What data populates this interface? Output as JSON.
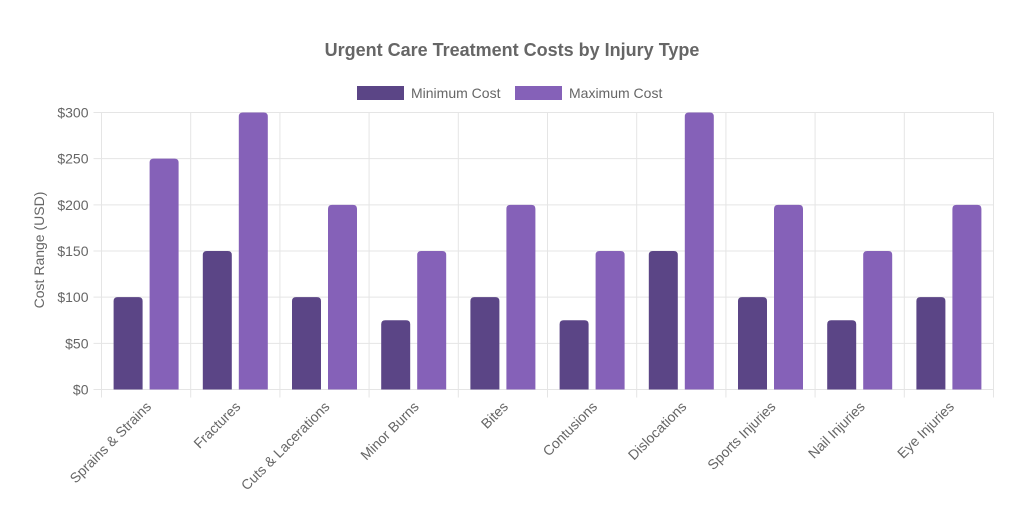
{
  "chart_data": {
    "type": "bar",
    "title": "Urgent Care Treatment Costs by Injury Type",
    "xlabel": "",
    "ylabel": "Cost Range (USD)",
    "ylim": [
      0,
      300
    ],
    "yticks": [
      0,
      50,
      100,
      150,
      200,
      250,
      300
    ],
    "ytick_labels": [
      "$0",
      "$50",
      "$100",
      "$150",
      "$200",
      "$250",
      "$300"
    ],
    "grid": true,
    "legend_position": "top",
    "categories": [
      "Sprains & Strains",
      "Fractures",
      "Cuts & Lacerations",
      "Minor Burns",
      "Bites",
      "Contusions",
      "Dislocations",
      "Sports Injuries",
      "Nail Injuries",
      "Eye Injuries"
    ],
    "series": [
      {
        "name": "Minimum Cost",
        "color": "#5b4586",
        "values": [
          100,
          150,
          100,
          75,
          100,
          75,
          150,
          100,
          75,
          100
        ]
      },
      {
        "name": "Maximum Cost",
        "color": "#8561b8",
        "values": [
          250,
          300,
          200,
          150,
          200,
          150,
          300,
          200,
          150,
          200
        ]
      }
    ]
  }
}
